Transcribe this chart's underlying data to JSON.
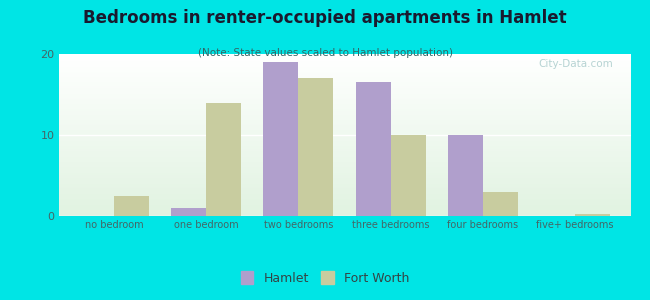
{
  "title": "Bedrooms in renter-occupied apartments in Hamlet",
  "subtitle": "(Note: State values scaled to Hamlet population)",
  "categories": [
    "no bedroom",
    "one bedroom",
    "two bedrooms",
    "three bedrooms",
    "four bedrooms",
    "five+ bedrooms"
  ],
  "hamlet_values": [
    0,
    1,
    19,
    16.5,
    10,
    0
  ],
  "fortworth_values": [
    2.5,
    14,
    17,
    10,
    3,
    0.3
  ],
  "hamlet_color": "#b09fcc",
  "fortworth_color": "#c8cc9f",
  "background_outer": "#00e5e5",
  "ylim": [
    0,
    20
  ],
  "yticks": [
    0,
    10,
    20
  ],
  "bar_width": 0.38,
  "legend_hamlet_label": "Hamlet",
  "legend_fortworth_label": "Fort Worth",
  "watermark": "City-Data.com"
}
